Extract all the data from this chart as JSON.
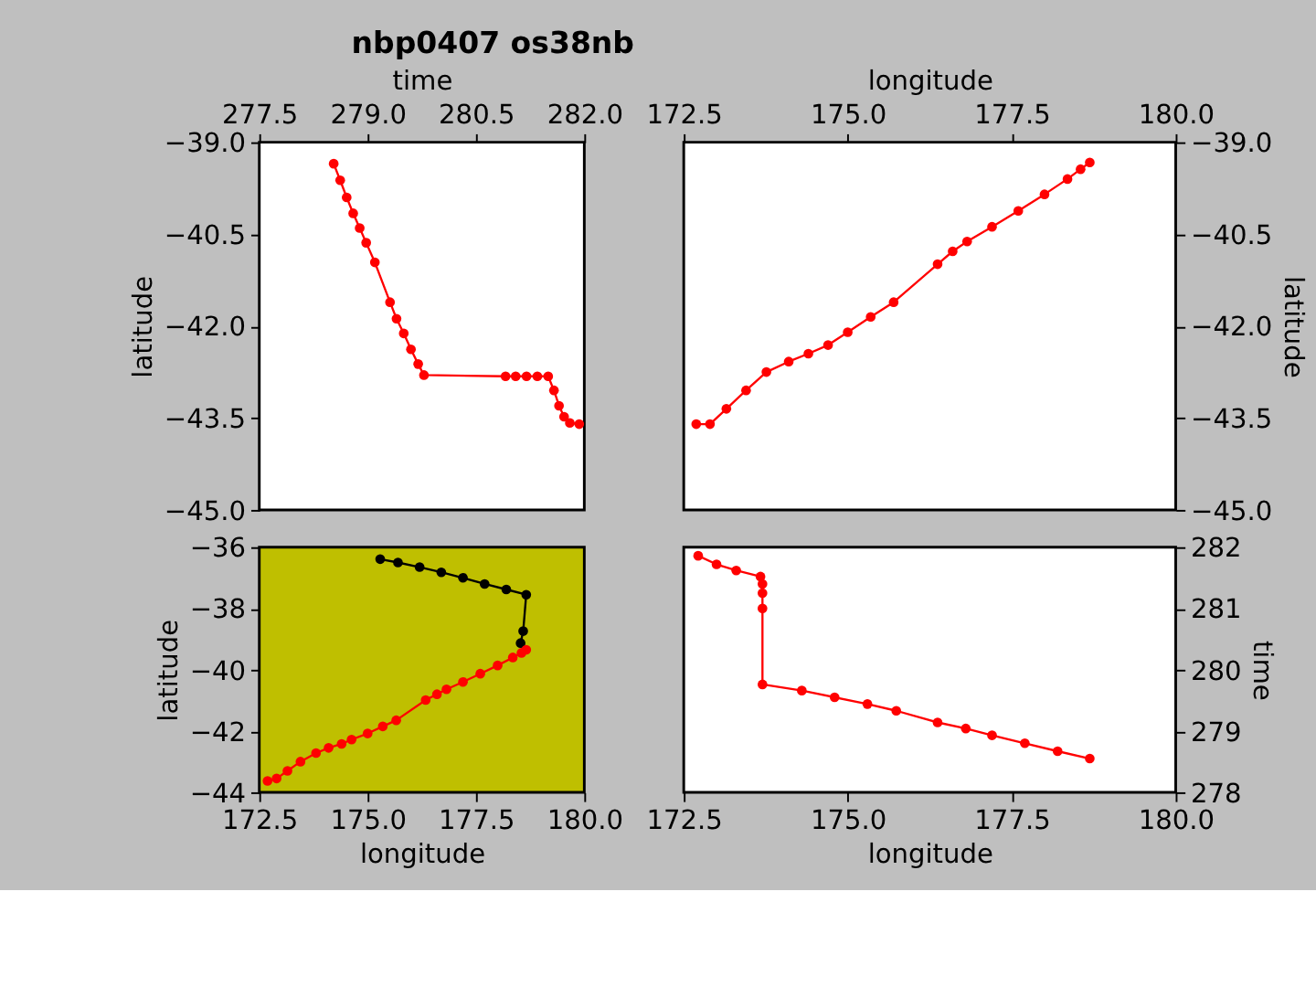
{
  "chart_data": [
    {
      "type": "line",
      "title": "nbp0407 os38nb",
      "xlabel": "time",
      "ylabel": "latitude",
      "xlim": [
        277.5,
        282.0
      ],
      "xticks": [
        277.5,
        {
          "value": 279,
          "label": "279.0"
        },
        280.5,
        {
          "value": 282,
          "label": "282.0"
        }
      ],
      "ylim": [
        -45,
        -39
      ],
      "yticks": [
        {
          "value": -39,
          "label": "−39.0"
        },
        {
          "value": -40.5,
          "label": "−40.5"
        },
        {
          "value": -42,
          "label": "−42.0"
        },
        {
          "value": -43.5,
          "label": "−43.5"
        },
        {
          "value": -45,
          "label": "−45.0"
        }
      ],
      "grid": false,
      "marker": "circle",
      "line_style": "solid",
      "series": [
        {
          "color": "#ff0000",
          "x": [
            278.53,
            278.62,
            278.71,
            278.8,
            278.89,
            278.98,
            279.1,
            279.31,
            279.4,
            279.5,
            279.6,
            279.7,
            279.78,
            280.91,
            281.05,
            281.2,
            281.35,
            281.5,
            281.58,
            281.65,
            281.72,
            281.8,
            281.93
          ],
          "values": [
            -39.35,
            -39.62,
            -39.9,
            -40.16,
            -40.4,
            -40.64,
            -40.96,
            -41.61,
            -41.88,
            -42.12,
            -42.38,
            -42.62,
            -42.8,
            -42.82,
            -42.82,
            -42.82,
            -42.82,
            -42.82,
            -43.05,
            -43.3,
            -43.48,
            -43.58,
            -43.6
          ]
        }
      ]
    },
    {
      "type": "line",
      "xlabel": "longitude",
      "ylabel": "latitude",
      "xlim": [
        172.5,
        180.0
      ],
      "xticks": [
        172.5,
        {
          "value": 175,
          "label": "175.0"
        },
        177.5,
        {
          "value": 180,
          "label": "180.0"
        }
      ],
      "ylim": [
        -45,
        -39
      ],
      "yticks": [
        {
          "value": -39,
          "label": "−39.0"
        },
        {
          "value": -40.5,
          "label": "−40.5"
        },
        {
          "value": -42,
          "label": "−42.0"
        },
        {
          "value": -43.5,
          "label": "−43.5"
        },
        {
          "value": -45,
          "label": "−45.0"
        }
      ],
      "grid": false,
      "marker": "circle",
      "line_style": "solid",
      "series": [
        {
          "color": "#ff0000",
          "x": [
            172.69,
            172.9,
            173.15,
            173.45,
            173.76,
            174.1,
            174.4,
            174.7,
            175.0,
            175.35,
            175.7,
            176.37,
            176.6,
            176.82,
            177.2,
            177.6,
            178.0,
            178.35,
            178.55,
            178.69
          ],
          "values": [
            -43.6,
            -43.6,
            -43.35,
            -43.05,
            -42.75,
            -42.58,
            -42.45,
            -42.31,
            -42.1,
            -41.85,
            -41.61,
            -40.99,
            -40.78,
            -40.62,
            -40.38,
            -40.12,
            -39.85,
            -39.6,
            -39.44,
            -39.33
          ]
        }
      ]
    },
    {
      "type": "line",
      "xlabel": "longitude",
      "ylabel": "latitude",
      "xlim": [
        172.5,
        180.0
      ],
      "xticks": [
        172.5,
        {
          "value": 175,
          "label": "175.0"
        },
        177.5,
        {
          "value": 180,
          "label": "180.0"
        }
      ],
      "ylim": [
        -44,
        -36
      ],
      "yticks": [
        {
          "value": -44,
          "label": "−44"
        },
        {
          "value": -42,
          "label": "−42"
        },
        {
          "value": -40,
          "label": "−40"
        },
        {
          "value": -38,
          "label": "−38"
        },
        {
          "value": -36,
          "label": "−36"
        }
      ],
      "grid": false,
      "marker": "circle",
      "line_style": "solid",
      "series": [
        {
          "color": "#000000",
          "x": [
            175.29,
            175.7,
            176.2,
            176.7,
            177.2,
            177.7,
            178.2,
            178.66,
            178.59,
            178.53
          ],
          "values": [
            -36.39,
            -36.5,
            -36.65,
            -36.82,
            -37.0,
            -37.2,
            -37.38,
            -37.55,
            -38.74,
            -39.13
          ]
        },
        {
          "color": "#ff0000",
          "x": [
            172.69,
            172.9,
            173.15,
            173.45,
            173.81,
            174.1,
            174.4,
            174.63,
            175.0,
            175.35,
            175.66,
            176.34,
            176.6,
            176.82,
            177.2,
            177.6,
            178.0,
            178.35,
            178.55,
            178.66
          ],
          "values": [
            -43.63,
            -43.55,
            -43.3,
            -43.0,
            -42.72,
            -42.55,
            -42.42,
            -42.28,
            -42.08,
            -41.85,
            -41.65,
            -40.99,
            -40.8,
            -40.64,
            -40.4,
            -40.13,
            -39.86,
            -39.6,
            -39.45,
            -39.35
          ]
        }
      ]
    },
    {
      "type": "line",
      "xlabel": "longitude",
      "ylabel": "time",
      "xlim": [
        172.5,
        180.0
      ],
      "xticks": [
        172.5,
        {
          "value": 175,
          "label": "175.0"
        },
        177.5,
        {
          "value": 180,
          "label": "180.0"
        }
      ],
      "ylim": [
        278,
        282
      ],
      "yticks": [
        278,
        279,
        280,
        281,
        282
      ],
      "grid": false,
      "marker": "circle",
      "line_style": "solid",
      "series": [
        {
          "color": "#ff0000",
          "x": [
            178.69,
            178.2,
            177.7,
            177.2,
            176.8,
            176.37,
            175.74,
            175.3,
            174.8,
            174.3,
            173.7,
            173.7,
            173.7,
            173.7,
            173.67,
            173.3,
            173.0,
            172.72
          ],
          "values": [
            278.55,
            278.67,
            278.8,
            278.93,
            279.04,
            279.14,
            279.33,
            279.44,
            279.55,
            279.66,
            279.76,
            281.0,
            281.25,
            281.4,
            281.52,
            281.62,
            281.72,
            281.86
          ]
        }
      ]
    }
  ]
}
